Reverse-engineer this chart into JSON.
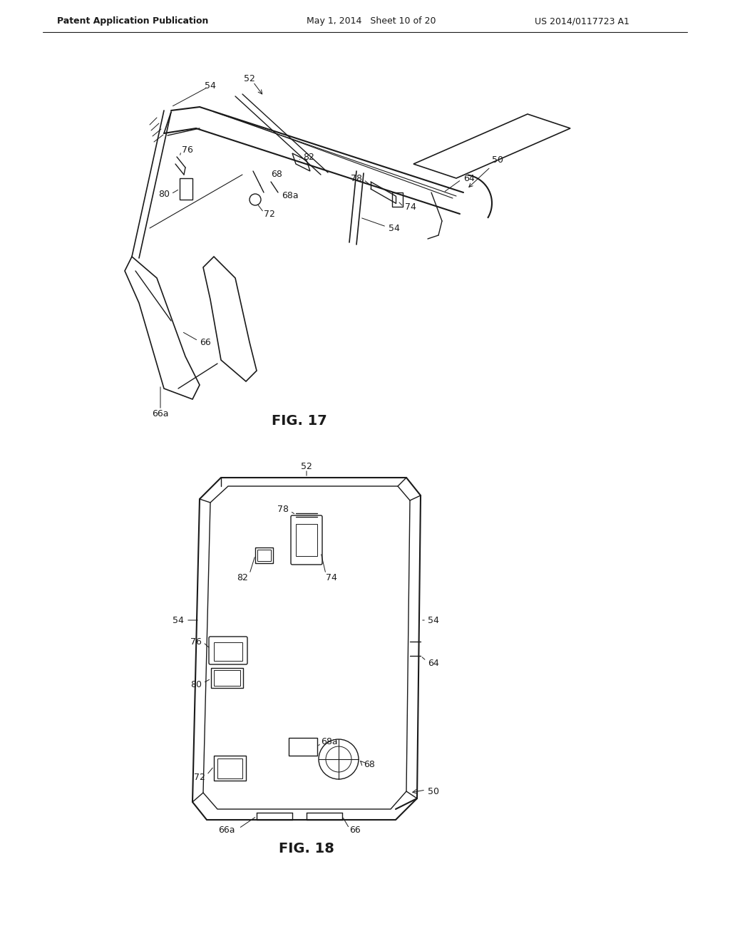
{
  "bg_color": "#ffffff",
  "header_left": "Patent Application Publication",
  "header_mid": "May 1, 2014   Sheet 10 of 20",
  "header_right": "US 2014/0117723 A1",
  "fig17_title": "FIG. 17",
  "fig18_title": "FIG. 18",
  "line_color": "#1a1a1a",
  "text_color": "#1a1a1a",
  "label_fontsize": 9,
  "header_fontsize": 9,
  "fig_title_fontsize": 14
}
